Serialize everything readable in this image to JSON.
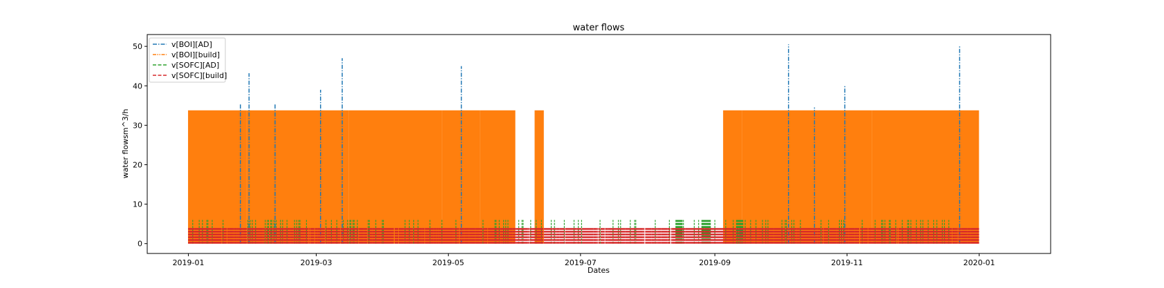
{
  "chart_data": {
    "type": "line",
    "title": "water flows",
    "xlabel": "Dates",
    "ylabel": "water flowsm^3/h",
    "xlim": [
      "2018-12-13",
      "2020-02-03"
    ],
    "ylim": [
      -2.5,
      53
    ],
    "x_ticks": [
      "2019-01",
      "2019-03",
      "2019-05",
      "2019-07",
      "2019-09",
      "2019-11",
      "2020-01"
    ],
    "y_ticks": [
      0,
      10,
      20,
      30,
      40,
      50
    ],
    "grid": false,
    "legend_position": "top-left",
    "series": [
      {
        "name": "v[BOI][AD]",
        "color": "#1f77b4",
        "style": "dashdot",
        "peaks": [
          {
            "x": "2019-01-25",
            "y": 35.5
          },
          {
            "x": "2019-01-29",
            "y": 43.2
          },
          {
            "x": "2019-02-10",
            "y": 35.5
          },
          {
            "x": "2019-03-03",
            "y": 39.0
          },
          {
            "x": "2019-03-13",
            "y": 47.0
          },
          {
            "x": "2019-05-07",
            "y": 45.0
          },
          {
            "x": "2019-10-05",
            "y": 50.5
          },
          {
            "x": "2019-10-17",
            "y": 34.5
          },
          {
            "x": "2019-10-31",
            "y": 40.0
          },
          {
            "x": "2019-12-23",
            "y": 50.2
          }
        ]
      },
      {
        "name": "v[BOI][build]",
        "color": "#ff7f0e",
        "style": "dashdotdot",
        "max": 33.8,
        "active_periods": [
          [
            "2019-01-01",
            "2019-05-31"
          ],
          [
            "2019-06-10",
            "2019-06-13"
          ],
          [
            "2019-09-05",
            "2019-12-31"
          ]
        ]
      },
      {
        "name": "v[SOFC][AD]",
        "color": "#2ca02c",
        "style": "dashed",
        "typical_max": 6.0,
        "blocks": [
          [
            "2019-08-14",
            "2019-08-16"
          ],
          [
            "2019-08-26",
            "2019-08-29"
          ],
          [
            "2019-09-11",
            "2019-09-13"
          ]
        ]
      },
      {
        "name": "v[SOFC][build]",
        "color": "#d62728",
        "style": "dashed",
        "low": 0.0,
        "high": 4.0,
        "active_period": [
          "2019-01-01",
          "2019-12-31"
        ]
      }
    ]
  }
}
